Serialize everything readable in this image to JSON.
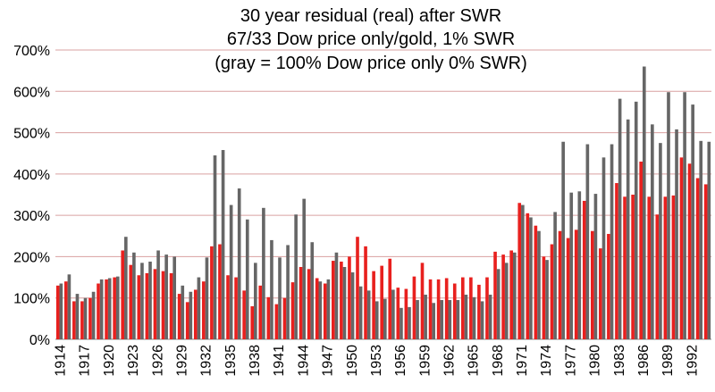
{
  "chart_data": {
    "type": "bar",
    "title": [
      "30 year residual (real) after SWR",
      "67/33 Dow price only/gold, 1% SWR",
      "(gray = 100% Dow price only 0% SWR)"
    ],
    "categories": [
      "1914",
      null,
      null,
      "1917",
      null,
      null,
      "1920",
      null,
      null,
      "1923",
      null,
      null,
      "1926",
      null,
      null,
      "1929",
      null,
      null,
      "1932",
      null,
      null,
      "1935",
      null,
      null,
      "1938",
      null,
      null,
      "1941",
      null,
      null,
      "1944",
      null,
      null,
      "1947",
      null,
      null,
      "1950",
      null,
      null,
      "1953",
      null,
      null,
      "1956",
      null,
      null,
      "1959",
      null,
      null,
      "1962",
      null,
      null,
      "1965",
      null,
      null,
      "1968",
      null,
      null,
      "1971",
      null,
      null,
      "1974",
      null,
      null,
      "1977",
      null,
      null,
      "1980",
      null,
      null,
      "1983",
      null,
      null,
      "1986",
      null,
      null,
      "1989",
      null,
      null,
      "1992",
      null,
      null
    ],
    "series": [
      {
        "color": "#e8201e",
        "values": [
          130,
          140,
          92,
          92,
          100,
          135,
          145,
          150,
          215,
          180,
          155,
          160,
          170,
          165,
          160,
          110,
          90,
          120,
          140,
          225,
          230,
          155,
          150,
          118,
          80,
          130,
          102,
          85,
          100,
          138,
          175,
          170,
          148,
          135,
          190,
          188,
          200,
          248,
          225,
          165,
          178,
          195,
          125,
          122,
          152,
          185,
          145,
          145,
          148,
          135,
          150,
          150,
          132,
          150,
          212,
          205,
          215,
          330,
          305,
          275,
          200,
          230,
          262,
          245,
          265,
          335,
          262,
          220,
          255,
          378,
          345,
          350,
          430,
          345,
          302,
          345,
          348,
          440,
          425,
          390,
          375
        ]
      },
      {
        "color": "#666666",
        "values": [
          135,
          157,
          110,
          100,
          115,
          145,
          148,
          152,
          248,
          210,
          185,
          188,
          215,
          205,
          200,
          130,
          115,
          150,
          198,
          445,
          458,
          325,
          365,
          290,
          185,
          318,
          240,
          198,
          228,
          302,
          340,
          235,
          140,
          145,
          210,
          175,
          162,
          128,
          118,
          92,
          98,
          120,
          76,
          78,
          95,
          108,
          88,
          95,
          95,
          95,
          108,
          102,
          92,
          108,
          170,
          185,
          210,
          325,
          295,
          262,
          192,
          308,
          478,
          355,
          358,
          472,
          352,
          440,
          472,
          582,
          532,
          575,
          660,
          520,
          475,
          598,
          508,
          598,
          568,
          480,
          478
        ]
      }
    ],
    "ylim": [
      0,
      700
    ],
    "yticks": [
      {
        "value": 0,
        "label": "0%"
      },
      {
        "value": 100,
        "label": "100%"
      },
      {
        "value": 200,
        "label": "200%"
      },
      {
        "value": 300,
        "label": "300%"
      },
      {
        "value": 400,
        "label": "400%"
      },
      {
        "value": 500,
        "label": "500%"
      },
      {
        "value": 600,
        "label": "600%"
      },
      {
        "value": 700,
        "label": "700%"
      }
    ],
    "grid": true
  }
}
